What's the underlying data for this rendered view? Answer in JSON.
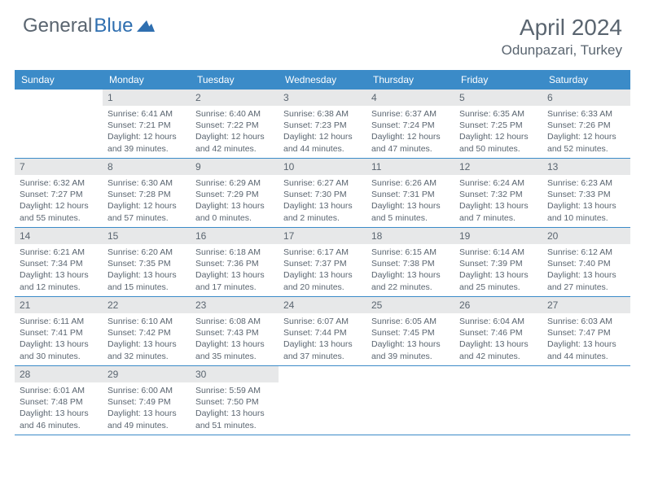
{
  "brand": {
    "part1": "General",
    "part2": "Blue"
  },
  "title": "April 2024",
  "location": "Odunpazari, Turkey",
  "colors": {
    "header_bg": "#3b8bc8",
    "header_text": "#ffffff",
    "daynum_bg": "#e7e8e9",
    "text": "#5a6570",
    "rule": "#3b8bc8",
    "logo_accent": "#2f6fb0"
  },
  "day_names": [
    "Sunday",
    "Monday",
    "Tuesday",
    "Wednesday",
    "Thursday",
    "Friday",
    "Saturday"
  ],
  "weeks": [
    [
      {
        "n": "",
        "sr": "",
        "ss": "",
        "dl": ""
      },
      {
        "n": "1",
        "sr": "Sunrise: 6:41 AM",
        "ss": "Sunset: 7:21 PM",
        "dl": "Daylight: 12 hours and 39 minutes."
      },
      {
        "n": "2",
        "sr": "Sunrise: 6:40 AM",
        "ss": "Sunset: 7:22 PM",
        "dl": "Daylight: 12 hours and 42 minutes."
      },
      {
        "n": "3",
        "sr": "Sunrise: 6:38 AM",
        "ss": "Sunset: 7:23 PM",
        "dl": "Daylight: 12 hours and 44 minutes."
      },
      {
        "n": "4",
        "sr": "Sunrise: 6:37 AM",
        "ss": "Sunset: 7:24 PM",
        "dl": "Daylight: 12 hours and 47 minutes."
      },
      {
        "n": "5",
        "sr": "Sunrise: 6:35 AM",
        "ss": "Sunset: 7:25 PM",
        "dl": "Daylight: 12 hours and 50 minutes."
      },
      {
        "n": "6",
        "sr": "Sunrise: 6:33 AM",
        "ss": "Sunset: 7:26 PM",
        "dl": "Daylight: 12 hours and 52 minutes."
      }
    ],
    [
      {
        "n": "7",
        "sr": "Sunrise: 6:32 AM",
        "ss": "Sunset: 7:27 PM",
        "dl": "Daylight: 12 hours and 55 minutes."
      },
      {
        "n": "8",
        "sr": "Sunrise: 6:30 AM",
        "ss": "Sunset: 7:28 PM",
        "dl": "Daylight: 12 hours and 57 minutes."
      },
      {
        "n": "9",
        "sr": "Sunrise: 6:29 AM",
        "ss": "Sunset: 7:29 PM",
        "dl": "Daylight: 13 hours and 0 minutes."
      },
      {
        "n": "10",
        "sr": "Sunrise: 6:27 AM",
        "ss": "Sunset: 7:30 PM",
        "dl": "Daylight: 13 hours and 2 minutes."
      },
      {
        "n": "11",
        "sr": "Sunrise: 6:26 AM",
        "ss": "Sunset: 7:31 PM",
        "dl": "Daylight: 13 hours and 5 minutes."
      },
      {
        "n": "12",
        "sr": "Sunrise: 6:24 AM",
        "ss": "Sunset: 7:32 PM",
        "dl": "Daylight: 13 hours and 7 minutes."
      },
      {
        "n": "13",
        "sr": "Sunrise: 6:23 AM",
        "ss": "Sunset: 7:33 PM",
        "dl": "Daylight: 13 hours and 10 minutes."
      }
    ],
    [
      {
        "n": "14",
        "sr": "Sunrise: 6:21 AM",
        "ss": "Sunset: 7:34 PM",
        "dl": "Daylight: 13 hours and 12 minutes."
      },
      {
        "n": "15",
        "sr": "Sunrise: 6:20 AM",
        "ss": "Sunset: 7:35 PM",
        "dl": "Daylight: 13 hours and 15 minutes."
      },
      {
        "n": "16",
        "sr": "Sunrise: 6:18 AM",
        "ss": "Sunset: 7:36 PM",
        "dl": "Daylight: 13 hours and 17 minutes."
      },
      {
        "n": "17",
        "sr": "Sunrise: 6:17 AM",
        "ss": "Sunset: 7:37 PM",
        "dl": "Daylight: 13 hours and 20 minutes."
      },
      {
        "n": "18",
        "sr": "Sunrise: 6:15 AM",
        "ss": "Sunset: 7:38 PM",
        "dl": "Daylight: 13 hours and 22 minutes."
      },
      {
        "n": "19",
        "sr": "Sunrise: 6:14 AM",
        "ss": "Sunset: 7:39 PM",
        "dl": "Daylight: 13 hours and 25 minutes."
      },
      {
        "n": "20",
        "sr": "Sunrise: 6:12 AM",
        "ss": "Sunset: 7:40 PM",
        "dl": "Daylight: 13 hours and 27 minutes."
      }
    ],
    [
      {
        "n": "21",
        "sr": "Sunrise: 6:11 AM",
        "ss": "Sunset: 7:41 PM",
        "dl": "Daylight: 13 hours and 30 minutes."
      },
      {
        "n": "22",
        "sr": "Sunrise: 6:10 AM",
        "ss": "Sunset: 7:42 PM",
        "dl": "Daylight: 13 hours and 32 minutes."
      },
      {
        "n": "23",
        "sr": "Sunrise: 6:08 AM",
        "ss": "Sunset: 7:43 PM",
        "dl": "Daylight: 13 hours and 35 minutes."
      },
      {
        "n": "24",
        "sr": "Sunrise: 6:07 AM",
        "ss": "Sunset: 7:44 PM",
        "dl": "Daylight: 13 hours and 37 minutes."
      },
      {
        "n": "25",
        "sr": "Sunrise: 6:05 AM",
        "ss": "Sunset: 7:45 PM",
        "dl": "Daylight: 13 hours and 39 minutes."
      },
      {
        "n": "26",
        "sr": "Sunrise: 6:04 AM",
        "ss": "Sunset: 7:46 PM",
        "dl": "Daylight: 13 hours and 42 minutes."
      },
      {
        "n": "27",
        "sr": "Sunrise: 6:03 AM",
        "ss": "Sunset: 7:47 PM",
        "dl": "Daylight: 13 hours and 44 minutes."
      }
    ],
    [
      {
        "n": "28",
        "sr": "Sunrise: 6:01 AM",
        "ss": "Sunset: 7:48 PM",
        "dl": "Daylight: 13 hours and 46 minutes."
      },
      {
        "n": "29",
        "sr": "Sunrise: 6:00 AM",
        "ss": "Sunset: 7:49 PM",
        "dl": "Daylight: 13 hours and 49 minutes."
      },
      {
        "n": "30",
        "sr": "Sunrise: 5:59 AM",
        "ss": "Sunset: 7:50 PM",
        "dl": "Daylight: 13 hours and 51 minutes."
      },
      {
        "n": "",
        "sr": "",
        "ss": "",
        "dl": ""
      },
      {
        "n": "",
        "sr": "",
        "ss": "",
        "dl": ""
      },
      {
        "n": "",
        "sr": "",
        "ss": "",
        "dl": ""
      },
      {
        "n": "",
        "sr": "",
        "ss": "",
        "dl": ""
      }
    ]
  ]
}
